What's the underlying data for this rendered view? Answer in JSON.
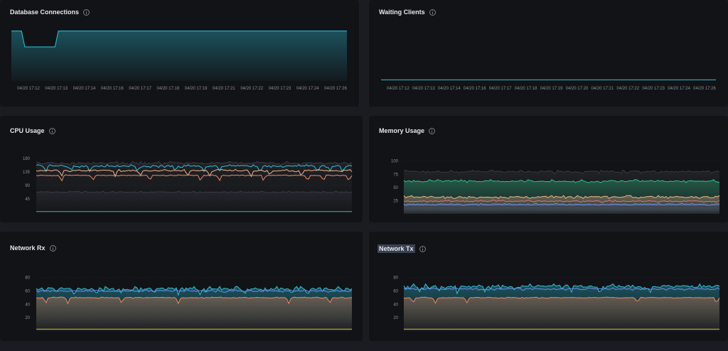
{
  "panels": [
    {
      "id": "db",
      "title": "Database Connections",
      "highlight": false
    },
    {
      "id": "wait",
      "title": "Waiting Clients",
      "highlight": false
    },
    {
      "id": "cpu",
      "title": "CPU Usage",
      "highlight": false
    },
    {
      "id": "mem",
      "title": "Memory Usage",
      "highlight": false
    },
    {
      "id": "rx",
      "title": "Network Rx",
      "highlight": false
    },
    {
      "id": "tx",
      "title": "Network Tx",
      "highlight": true
    }
  ],
  "colors": {
    "cyan": "#2ec3de",
    "orange": "#f08a5d",
    "peach": "#f0b48a",
    "green": "#2ec48a",
    "yellow": "#e8b84a",
    "blue": "#6c8fe6",
    "gray": "#3a3c44",
    "pink": "#e0708a"
  },
  "chart_data": [
    {
      "panel": "db",
      "type": "area",
      "x": [
        "04/20 17:12",
        "04/20 17:13",
        "04/20 17:14",
        "04/20 17:16",
        "04/20 17:17",
        "04/20 17:18",
        "04/20 17:19",
        "04/20 17:21",
        "04/20 17:22",
        "04/20 17:23",
        "04/20 17:24",
        "04/20 17:26"
      ],
      "ylim": [
        0,
        100
      ],
      "show_y_ticks": false,
      "series": [
        {
          "color": "#2ec3de",
          "fill": true,
          "values": [
            [
              0,
              88
            ],
            [
              0.03,
              88
            ],
            [
              0.04,
              60
            ],
            [
              0.13,
              60
            ],
            [
              0.14,
              88
            ],
            [
              1,
              88
            ]
          ]
        }
      ]
    },
    {
      "panel": "wait",
      "type": "line",
      "x": [
        "04/20 17:12",
        "04/20 17:13",
        "04/20 17:14",
        "04/20 17:16",
        "04/20 17:17",
        "04/20 17:18",
        "04/20 17:19",
        "04/20 17:20",
        "04/20 17:21",
        "04/20 17:22",
        "04/20 17:23",
        "04/20 17:24",
        "04/20 17:26"
      ],
      "ylim": [
        0,
        100
      ],
      "show_y_ticks": false,
      "series": [
        {
          "color": "#2ec3de",
          "fill": false,
          "values": [
            [
              0,
              2
            ],
            [
              1,
              2
            ]
          ]
        }
      ]
    },
    {
      "panel": "cpu",
      "type": "line",
      "y_ticks": [
        180,
        135,
        90,
        45
      ],
      "ylim": [
        0,
        190
      ],
      "series": [
        {
          "color": "#3a3c44",
          "fill": true,
          "base": 165,
          "noise": 6
        },
        {
          "color": "#2ec3de",
          "fill": false,
          "base": 155,
          "noise": 5,
          "dips": [
            0.03,
            0.11,
            0.17,
            0.32,
            0.44,
            0.53,
            0.58,
            0.71,
            0.89,
            0.93,
            0.97
          ]
        },
        {
          "color": "#f0b48a",
          "fill": false,
          "base": 140,
          "noise": 4,
          "dips": [
            0.08,
            0.25,
            0.33,
            0.48,
            0.55,
            0.68,
            0.74,
            0.84
          ]
        },
        {
          "color": "#f08a5d",
          "fill": false,
          "base": 124,
          "noise": 2,
          "dips": [
            0.08,
            0.18,
            0.36,
            0.52,
            0.58,
            0.72,
            0.86,
            0.91,
            0.99
          ]
        },
        {
          "color": "#3a3c44",
          "fill": true,
          "base": 68,
          "noise": 3
        },
        {
          "color": "#2ec48a",
          "fill": false,
          "base": 3,
          "noise": 0
        }
      ]
    },
    {
      "panel": "mem",
      "type": "area",
      "y_ticks": [
        100,
        75,
        50,
        25
      ],
      "ylim": [
        0,
        105
      ],
      "series": [
        {
          "color": "#3a3c44",
          "fill": true,
          "base": 80,
          "noise": 3
        },
        {
          "color": "#2ec48a",
          "fill": true,
          "base": 62,
          "noise": 3
        },
        {
          "color": "#f0b48a",
          "fill": true,
          "base": 32,
          "noise": 3
        },
        {
          "color": "#e0708a",
          "fill": false,
          "base": 24,
          "noise": 2
        },
        {
          "color": "#6c8fe6",
          "fill": true,
          "base": 18,
          "noise": 2
        },
        {
          "color": "#3a3c44",
          "fill": true,
          "base": 14,
          "noise": 1
        }
      ]
    },
    {
      "panel": "rx",
      "type": "area",
      "y_ticks": [
        80,
        60,
        40,
        20
      ],
      "ylim": [
        0,
        85
      ],
      "series": [
        {
          "color": "#2ec3de",
          "fill": true,
          "base": 63,
          "noise": 4,
          "dips": [
            0.12,
            0.19,
            0.27,
            0.45,
            0.52,
            0.66,
            0.81,
            0.86
          ]
        },
        {
          "color": "#6c8fe6",
          "fill": false,
          "base": 60,
          "noise": 2
        },
        {
          "color": "#f08a5d",
          "fill": true,
          "base": 50,
          "noise": 1,
          "dips": [
            0.03,
            0.1,
            0.27,
            0.45,
            0.8,
            0.93
          ]
        },
        {
          "color": "#e8b84a",
          "fill": false,
          "base": 3,
          "noise": 0
        }
      ]
    },
    {
      "panel": "tx",
      "type": "area",
      "y_ticks": [
        80,
        60,
        40,
        20
      ],
      "ylim": [
        0,
        85
      ],
      "series": [
        {
          "color": "#2ec3de",
          "fill": true,
          "base": 67,
          "noise": 4,
          "dips": [
            0.05,
            0.11,
            0.17,
            0.26,
            0.35,
            0.53,
            0.62,
            0.78
          ]
        },
        {
          "color": "#6c8fe6",
          "fill": false,
          "base": 63,
          "noise": 2
        },
        {
          "color": "#f08a5d",
          "fill": true,
          "base": 50,
          "noise": 1,
          "dips": [
            0.03,
            0.1,
            0.2,
            0.74,
            0.99
          ]
        },
        {
          "color": "#e8b84a",
          "fill": false,
          "base": 3,
          "noise": 0
        }
      ]
    }
  ]
}
